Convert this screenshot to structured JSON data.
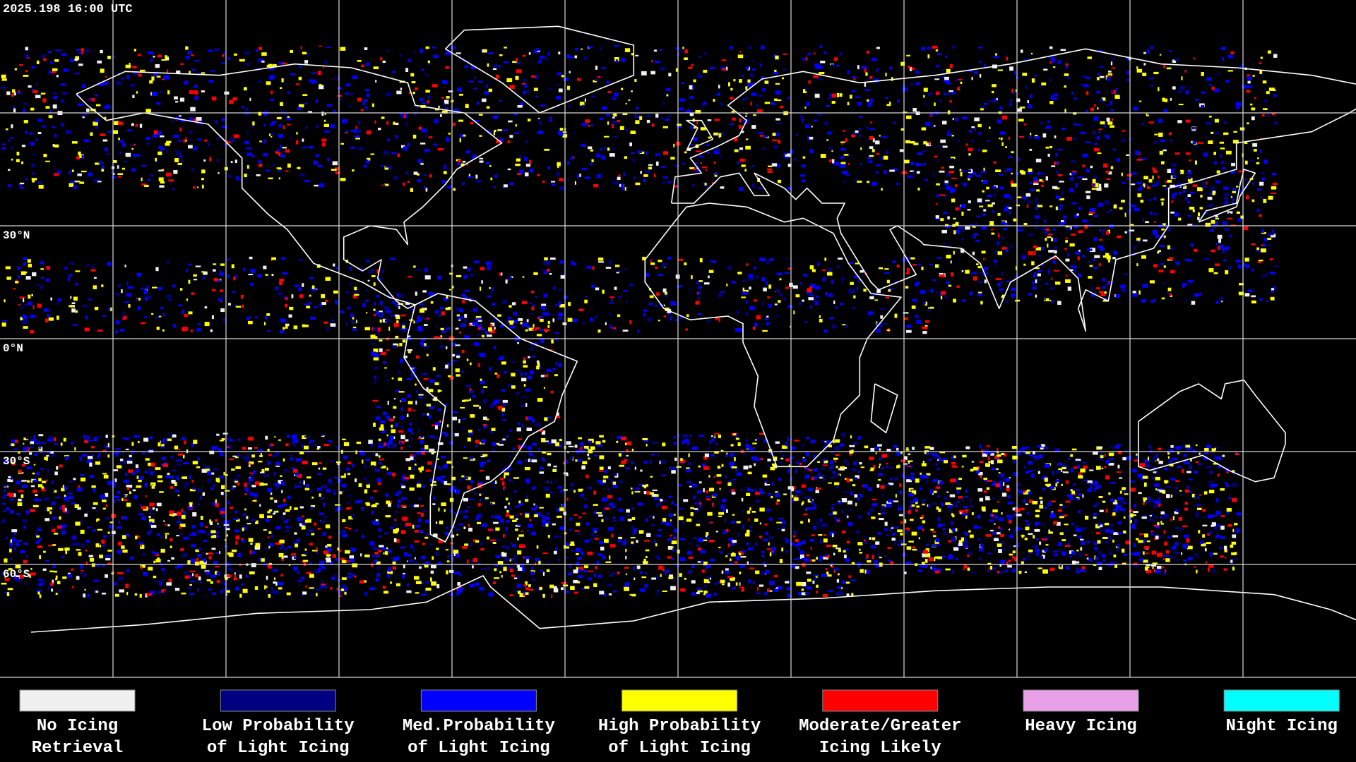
{
  "header": {
    "timestamp": "2025.198 16:00 UTC"
  },
  "map": {
    "latitude_labels": [
      "30°N",
      "0°N",
      "30°S",
      "60°S"
    ]
  },
  "legend": {
    "items": [
      {
        "label_lines": [
          "No Icing",
          "Retrieval"
        ],
        "color": "#f0f0f0"
      },
      {
        "label_lines": [
          "Low Probability",
          "of Light Icing"
        ],
        "color": "#000080"
      },
      {
        "label_lines": [
          "Med.Probability",
          "of Light Icing"
        ],
        "color": "#0000ff"
      },
      {
        "label_lines": [
          "High Probability",
          "of Light Icing"
        ],
        "color": "#ffff00"
      },
      {
        "label_lines": [
          "Moderate/Greater",
          "Icing Likely"
        ],
        "color": "#ff0000"
      },
      {
        "label_lines": [
          "Heavy Icing"
        ],
        "color": "#e8a0e8"
      },
      {
        "label_lines": [
          "Night Icing"
        ],
        "color": "#00ffff"
      }
    ]
  }
}
